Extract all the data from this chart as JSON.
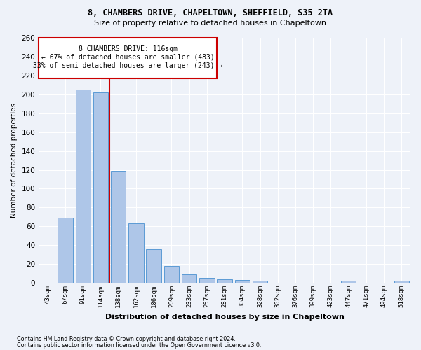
{
  "title1": "8, CHAMBERS DRIVE, CHAPELTOWN, SHEFFIELD, S35 2TA",
  "title2": "Size of property relative to detached houses in Chapeltown",
  "xlabel": "Distribution of detached houses by size in Chapeltown",
  "ylabel": "Number of detached properties",
  "categories": [
    "43sqm",
    "67sqm",
    "91sqm",
    "114sqm",
    "138sqm",
    "162sqm",
    "186sqm",
    "209sqm",
    "233sqm",
    "257sqm",
    "281sqm",
    "304sqm",
    "328sqm",
    "352sqm",
    "376sqm",
    "399sqm",
    "423sqm",
    "447sqm",
    "471sqm",
    "494sqm",
    "518sqm"
  ],
  "values": [
    0,
    69,
    205,
    202,
    119,
    63,
    36,
    18,
    9,
    5,
    4,
    3,
    2,
    0,
    0,
    0,
    0,
    2,
    0,
    0,
    2
  ],
  "bar_color": "#aec6e8",
  "bar_edgecolor": "#5b9bd5",
  "red_line_index": 3,
  "annotation_line1": "8 CHAMBERS DRIVE: 116sqm",
  "annotation_line2": "← 67% of detached houses are smaller (483)",
  "annotation_line3": "33% of semi-detached houses are larger (243) →",
  "annotation_box_color": "#ffffff",
  "annotation_box_edgecolor": "#cc0000",
  "footer1": "Contains HM Land Registry data © Crown copyright and database right 2024.",
  "footer2": "Contains public sector information licensed under the Open Government Licence v3.0.",
  "background_color": "#eef2f9",
  "grid_color": "#ffffff",
  "ylim": [
    0,
    260
  ],
  "yticks": [
    0,
    20,
    40,
    60,
    80,
    100,
    120,
    140,
    160,
    180,
    200,
    220,
    240,
    260
  ]
}
